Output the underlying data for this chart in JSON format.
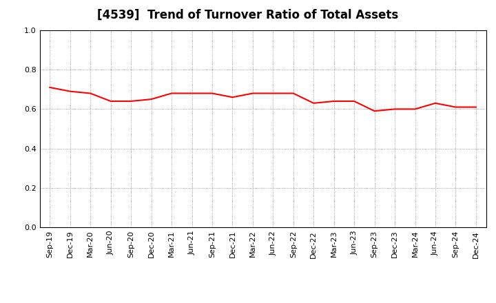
{
  "title": "[4539]  Trend of Turnover Ratio of Total Assets",
  "x_labels": [
    "Sep-19",
    "Dec-19",
    "Mar-20",
    "Jun-20",
    "Sep-20",
    "Dec-20",
    "Mar-21",
    "Jun-21",
    "Sep-21",
    "Dec-21",
    "Mar-22",
    "Jun-22",
    "Sep-22",
    "Dec-22",
    "Mar-23",
    "Jun-23",
    "Sep-23",
    "Dec-23",
    "Mar-24",
    "Jun-24",
    "Sep-24",
    "Dec-24"
  ],
  "y_values": [
    0.71,
    0.69,
    0.68,
    0.64,
    0.64,
    0.65,
    0.68,
    0.68,
    0.68,
    0.66,
    0.68,
    0.68,
    0.68,
    0.63,
    0.64,
    0.64,
    0.59,
    0.6,
    0.6,
    0.63,
    0.61,
    0.61
  ],
  "ylim": [
    0.0,
    1.0
  ],
  "yticks": [
    0.0,
    0.2,
    0.4,
    0.6,
    0.8,
    1.0
  ],
  "line_color": "#FF0000",
  "line_width": 1.5,
  "bg_color": "#FFFFFF",
  "plot_bg_color": "#FFFFFF",
  "grid_color": "#888888",
  "grid_style": ":",
  "title_fontsize": 12,
  "tick_fontsize": 8,
  "spine_color": "#000000"
}
